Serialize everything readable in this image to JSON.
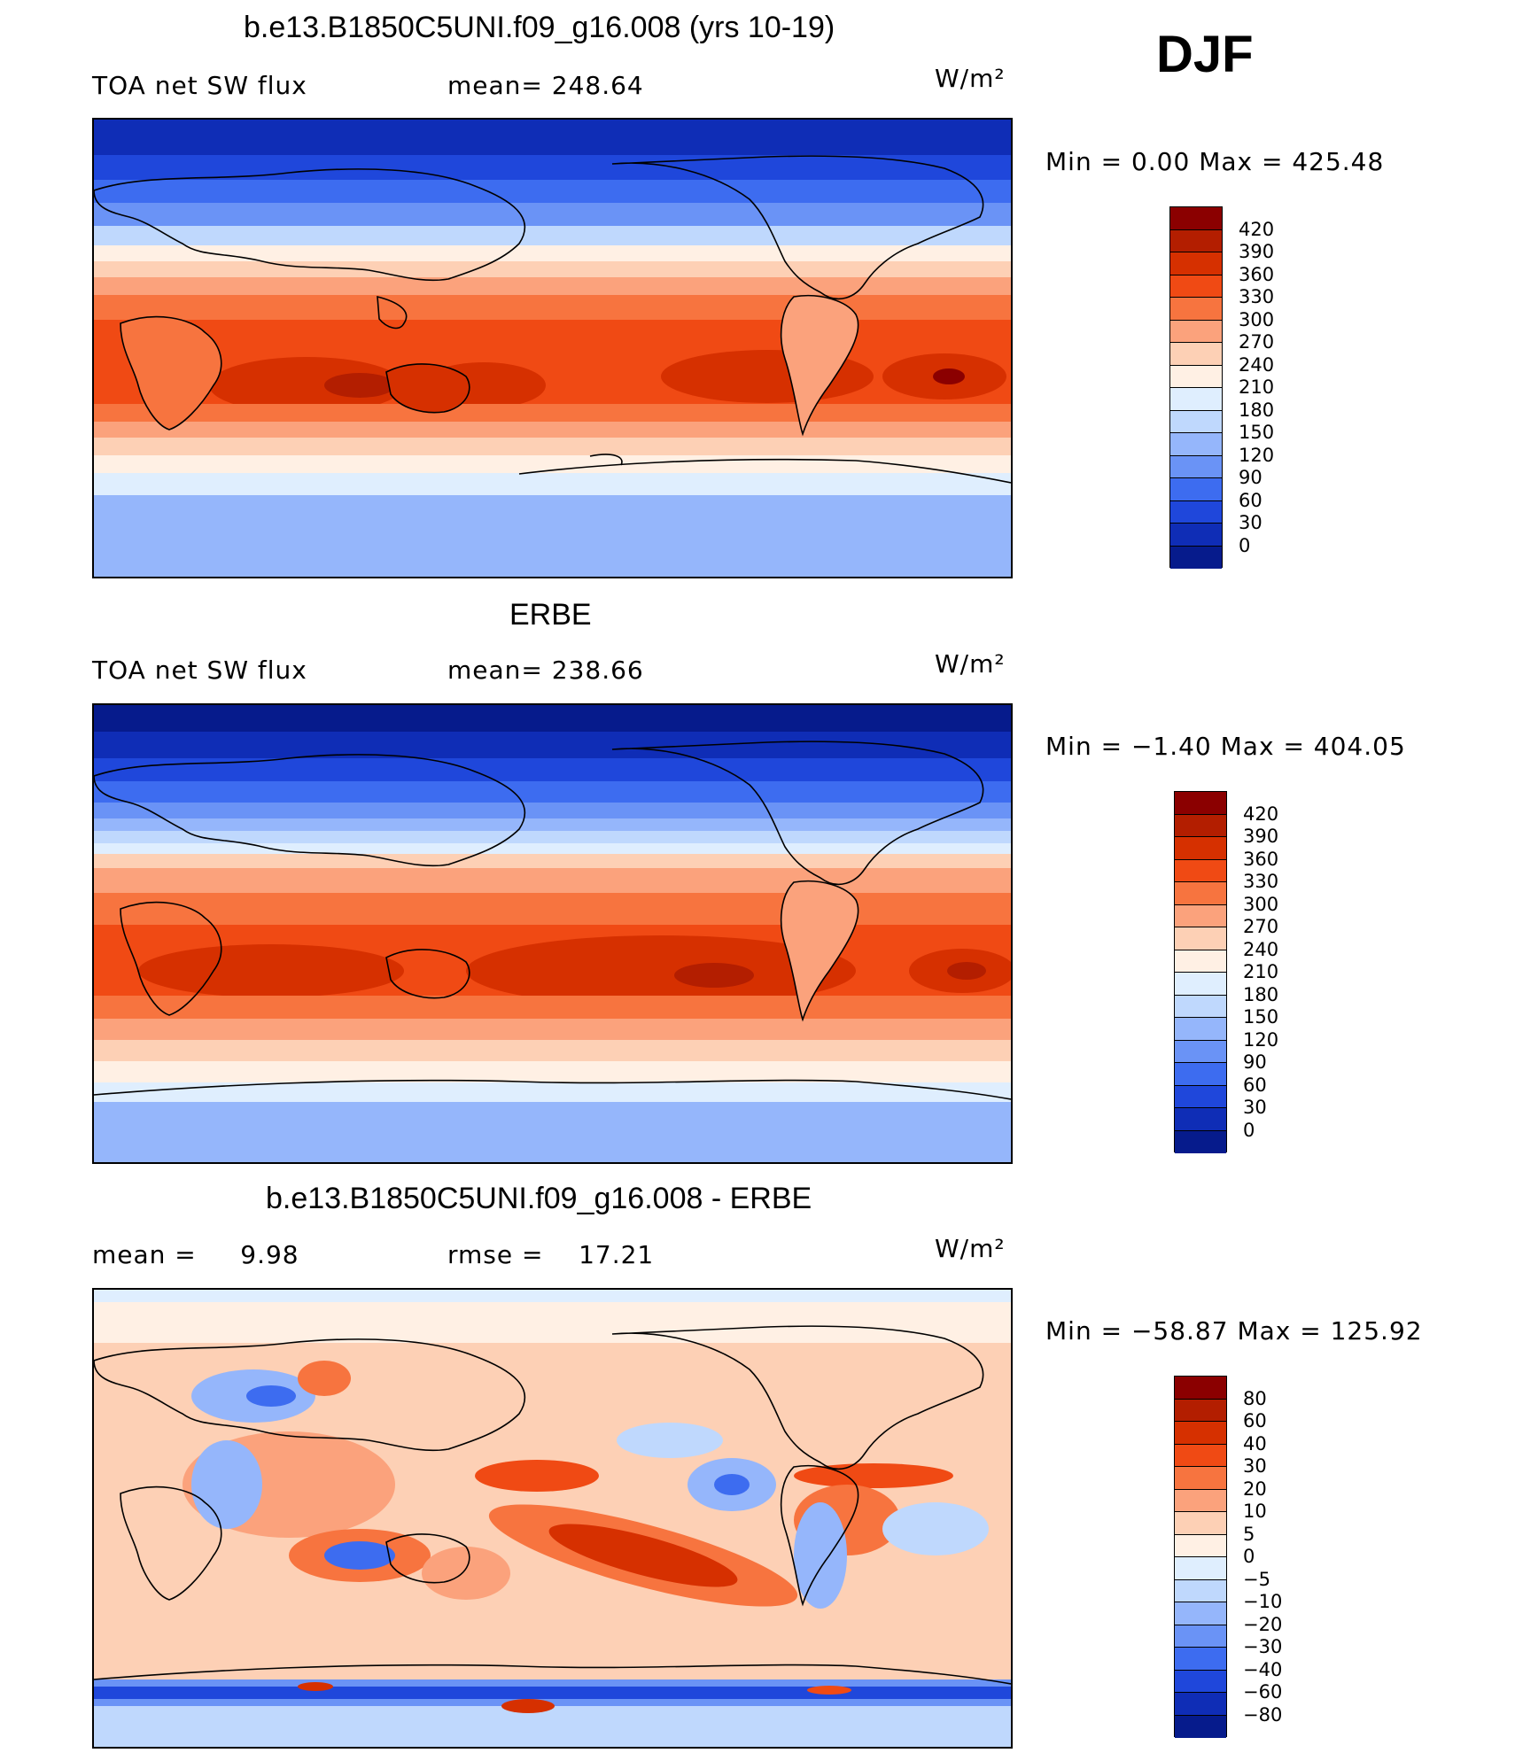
{
  "season": "DJF",
  "panels": [
    {
      "title": "b.e13.B1850C5UNI.f09_g16.008 (yrs 10-19)",
      "left_label": "TOA net SW flux",
      "mid_label": "mean= 248.64",
      "units": "W/m²",
      "minmax": "Min =    0.00  Max = 425.48",
      "ticks": [
        "420",
        "390",
        "360",
        "330",
        "300",
        "270",
        "240",
        "210",
        "180",
        "150",
        "120",
        "90",
        "60",
        "30",
        "0"
      ],
      "colors": [
        "#8b0000",
        "#b31e00",
        "#d63000",
        "#f04a14",
        "#f7743f",
        "#fba27c",
        "#fdd0b5",
        "#fff0e4",
        "#dfeefe",
        "#bfd8fd",
        "#95b6fb",
        "#6a93f6",
        "#3d6cf0",
        "#1f47db",
        "#0f2db6",
        "#061b8c"
      ]
    },
    {
      "title": "ERBE",
      "left_label": "TOA net SW flux",
      "mid_label": "mean= 238.66",
      "units": "W/m²",
      "minmax": "Min =  −1.40  Max = 404.05",
      "ticks": [
        "420",
        "390",
        "360",
        "330",
        "300",
        "270",
        "240",
        "210",
        "180",
        "150",
        "120",
        "90",
        "60",
        "30",
        "0"
      ],
      "colors": [
        "#8b0000",
        "#b31e00",
        "#d63000",
        "#f04a14",
        "#f7743f",
        "#fba27c",
        "#fdd0b5",
        "#fff0e4",
        "#dfeefe",
        "#bfd8fd",
        "#95b6fb",
        "#6a93f6",
        "#3d6cf0",
        "#1f47db",
        "#0f2db6",
        "#061b8c"
      ]
    },
    {
      "title": "b.e13.B1850C5UNI.f09_g16.008 - ERBE",
      "left_label": "mean =     9.98",
      "mid_label": "rmse =    17.21",
      "units": "W/m²",
      "minmax": "Min = −58.87  Max = 125.92",
      "ticks": [
        "80",
        "60",
        "40",
        "30",
        "20",
        "10",
        "5",
        "0",
        "−5",
        "−10",
        "−20",
        "−30",
        "−40",
        "−60",
        "−80"
      ],
      "colors": [
        "#8b0000",
        "#b31e00",
        "#d63000",
        "#f04a14",
        "#f7743f",
        "#fba27c",
        "#fdd0b5",
        "#fff0e4",
        "#dfeefe",
        "#bfd8fd",
        "#95b6fb",
        "#6a93f6",
        "#3d6cf0",
        "#1f47db",
        "#0f2db6",
        "#061b8c"
      ]
    }
  ]
}
